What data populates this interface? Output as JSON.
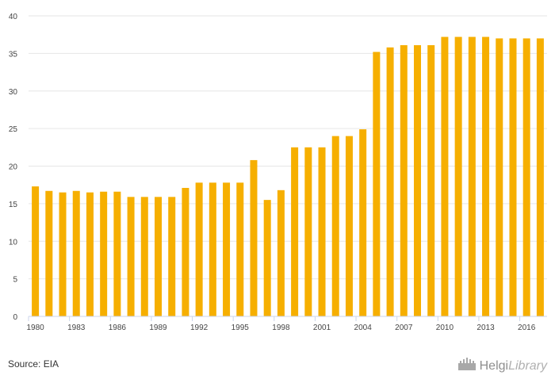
{
  "chart_data": {
    "type": "bar",
    "categories": [
      "1980",
      "1981",
      "1982",
      "1983",
      "1984",
      "1985",
      "1986",
      "1987",
      "1988",
      "1989",
      "1990",
      "1991",
      "1992",
      "1993",
      "1994",
      "1995",
      "1996",
      "1997",
      "1998",
      "1999",
      "2000",
      "2001",
      "2002",
      "2003",
      "2004",
      "2005",
      "2006",
      "2007",
      "2008",
      "2009",
      "2010",
      "2011",
      "2012",
      "2013",
      "2014",
      "2015",
      "2016",
      "2017"
    ],
    "values": [
      17.3,
      16.7,
      16.5,
      16.7,
      16.5,
      16.6,
      16.6,
      15.9,
      15.9,
      15.9,
      15.9,
      17.1,
      17.8,
      17.8,
      17.8,
      17.8,
      20.8,
      15.5,
      16.8,
      22.5,
      22.5,
      22.5,
      24.0,
      24.0,
      24.9,
      35.2,
      35.8,
      36.1,
      36.1,
      36.1,
      37.2,
      37.2,
      37.2,
      37.2,
      37.0,
      37.0,
      37.0,
      37.0
    ],
    "xtick_labels": [
      "1980",
      "1983",
      "1986",
      "1989",
      "1992",
      "1995",
      "1998",
      "2001",
      "2004",
      "2007",
      "2010",
      "2013",
      "2016"
    ],
    "yticks": [
      0,
      5,
      10,
      15,
      20,
      25,
      30,
      35,
      40
    ],
    "ylim": [
      0,
      40
    ],
    "grid": true,
    "bar_color": "#F6AF00"
  },
  "footer": {
    "source": "Source: EIA",
    "brand_part1": "Helgi",
    "brand_part2": "Library",
    "brand_icon": "castle-icon"
  }
}
